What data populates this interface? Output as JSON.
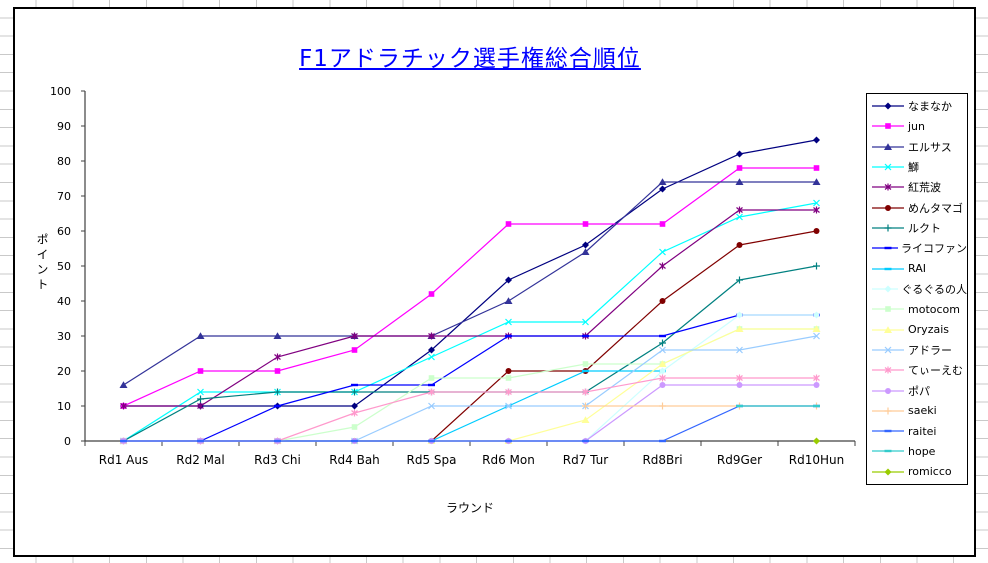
{
  "chart_data": {
    "type": "line",
    "title": "F1アドラチック選手権総合順位",
    "title_color": "#0000FF",
    "x_axis_title": "ラウンド",
    "y_axis_title": "ポイント",
    "ylim": [
      0,
      100
    ],
    "y_ticks": [
      0,
      10,
      20,
      30,
      40,
      50,
      60,
      70,
      80,
      90,
      100
    ],
    "grid": "off",
    "legend_position": "right",
    "categories": [
      "Rd1 Aus",
      "Rd2 Mal",
      "Rd3 Chi",
      "Rd4 Bah",
      "Rd5 Spa",
      "Rd6 Mon",
      "Rd7 Tur",
      "Rd8Bri",
      "Rd9Ger",
      "Rd10Hun"
    ],
    "series": [
      {
        "name": "なまなか",
        "color": "#000080",
        "marker": "diamond",
        "values": [
          10,
          10,
          10,
          10,
          26,
          46,
          56,
          72,
          82,
          86
        ]
      },
      {
        "name": "jun",
        "color": "#FF00FF",
        "marker": "square",
        "values": [
          10,
          20,
          20,
          26,
          42,
          62,
          62,
          62,
          78,
          78
        ]
      },
      {
        "name": "エルサス",
        "color": "#333399",
        "marker": "triangle",
        "values": [
          16,
          30,
          30,
          30,
          30,
          40,
          54,
          74,
          74,
          74
        ]
      },
      {
        "name": "鰤",
        "color": "#00FFFF",
        "marker": "x",
        "values": [
          0,
          14,
          14,
          14,
          24,
          34,
          34,
          54,
          64,
          68
        ]
      },
      {
        "name": "紅荒波",
        "color": "#800080",
        "marker": "asterisk",
        "values": [
          10,
          10,
          24,
          30,
          30,
          30,
          30,
          50,
          66,
          66
        ]
      },
      {
        "name": "めんタマゴ",
        "color": "#800000",
        "marker": "circle",
        "values": [
          0,
          0,
          0,
          0,
          0,
          20,
          20,
          40,
          56,
          60
        ]
      },
      {
        "name": "ルクト",
        "color": "#008080",
        "marker": "plus",
        "values": [
          0,
          12,
          14,
          14,
          14,
          14,
          14,
          28,
          46,
          50
        ]
      },
      {
        "name": "ライコファン",
        "color": "#0000FF",
        "marker": "dash",
        "values": [
          0,
          0,
          10,
          16,
          16,
          30,
          30,
          30,
          36,
          36
        ]
      },
      {
        "name": "RAI",
        "color": "#00CCFF",
        "marker": "dash",
        "values": [
          0,
          0,
          0,
          0,
          0,
          10,
          20,
          20,
          null,
          null
        ]
      },
      {
        "name": "ぐるぐるの人",
        "color": "#CCFFFF",
        "marker": "diamond",
        "values": [
          0,
          0,
          0,
          0,
          0,
          0,
          0,
          20,
          36,
          36
        ]
      },
      {
        "name": "motocom",
        "color": "#CCFFCC",
        "marker": "square",
        "values": [
          0,
          0,
          0,
          4,
          18,
          18,
          22,
          22,
          32,
          32
        ]
      },
      {
        "name": "Oryzais",
        "color": "#FFFF99",
        "marker": "triangle",
        "values": [
          0,
          0,
          0,
          0,
          0,
          0,
          6,
          22,
          32,
          32
        ]
      },
      {
        "name": "アドラー",
        "color": "#99CCFF",
        "marker": "x",
        "values": [
          0,
          0,
          0,
          0,
          10,
          10,
          10,
          26,
          26,
          30
        ]
      },
      {
        "name": "てぃーえむ",
        "color": "#FF99CC",
        "marker": "asterisk",
        "values": [
          0,
          0,
          0,
          8,
          14,
          14,
          14,
          18,
          18,
          18
        ]
      },
      {
        "name": "ポパ",
        "color": "#CC99FF",
        "marker": "circle",
        "values": [
          0,
          0,
          0,
          0,
          0,
          0,
          0,
          16,
          16,
          16
        ]
      },
      {
        "name": "saeki",
        "color": "#FFCC99",
        "marker": "plus",
        "values": [
          null,
          null,
          null,
          null,
          null,
          null,
          10,
          10,
          10,
          10
        ]
      },
      {
        "name": "raitei",
        "color": "#3366FF",
        "marker": "dash",
        "values": [
          0,
          0,
          0,
          0,
          0,
          0,
          0,
          0,
          10,
          10
        ]
      },
      {
        "name": "hope",
        "color": "#33CCCC",
        "marker": "dash",
        "values": [
          null,
          null,
          null,
          null,
          null,
          null,
          null,
          null,
          10,
          10
        ]
      },
      {
        "name": "romicco",
        "color": "#99CC00",
        "marker": "diamond",
        "values": [
          null,
          null,
          null,
          null,
          null,
          null,
          null,
          null,
          null,
          0
        ]
      }
    ]
  }
}
